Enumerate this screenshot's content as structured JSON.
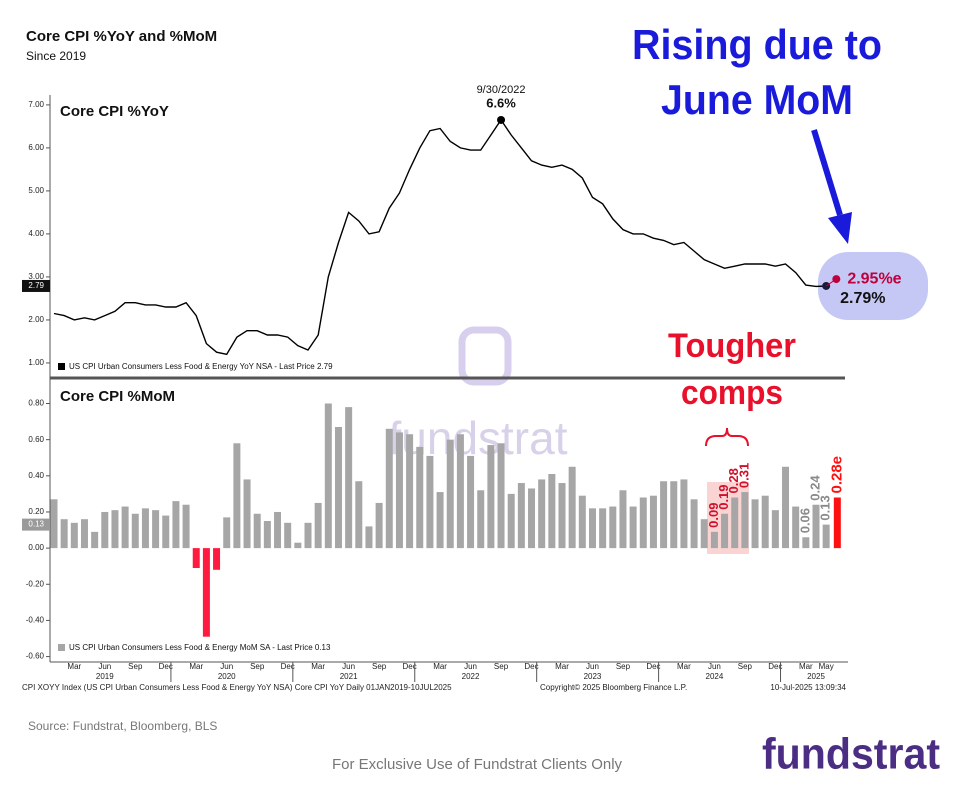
{
  "header": {
    "title": "Core CPI %YoY and %MoM",
    "subtitle": "Since 2019"
  },
  "callout": {
    "lines": [
      "Rising due to",
      "June MoM"
    ]
  },
  "watermark": "fundstrat",
  "chart_data": [
    {
      "type": "line",
      "title": "Core CPI %YoY",
      "color": "#000000",
      "legend": "US CPI Urban Consumers Less Food & Energy YoY NSA - Last Price 2.79",
      "values": [
        2.15,
        2.1,
        2.0,
        2.05,
        2.0,
        2.1,
        2.2,
        2.4,
        2.4,
        2.35,
        2.35,
        2.3,
        2.3,
        2.4,
        2.1,
        1.45,
        1.25,
        1.2,
        1.6,
        1.75,
        1.75,
        1.65,
        1.65,
        1.6,
        1.4,
        1.3,
        1.65,
        3.0,
        3.8,
        4.5,
        4.3,
        4.0,
        4.05,
        4.6,
        4.95,
        5.5,
        6.0,
        6.4,
        6.45,
        6.15,
        6.0,
        5.95,
        5.95,
        6.3,
        6.65,
        6.3,
        6.0,
        5.7,
        5.6,
        5.55,
        5.6,
        5.5,
        5.3,
        4.85,
        4.7,
        4.35,
        4.1,
        4.0,
        4.0,
        3.9,
        3.85,
        3.75,
        3.8,
        3.6,
        3.4,
        3.3,
        3.2,
        3.25,
        3.3,
        3.3,
        3.3,
        3.25,
        3.3,
        3.1,
        2.81,
        2.78,
        2.79,
        null
      ],
      "ylim": [
        0.65,
        7.23
      ],
      "yticks": [
        {
          "value": 1,
          "label": "1.00"
        },
        {
          "value": 2,
          "label": "2.00"
        },
        {
          "value": 3,
          "label": "3.00"
        },
        {
          "value": 4,
          "label": "4.00"
        },
        {
          "value": 5,
          "label": "5.00"
        },
        {
          "value": 6,
          "label": "6.00"
        },
        {
          "value": 7,
          "label": "7.00"
        }
      ],
      "last_price": {
        "value": 2.79,
        "label": "2.79"
      },
      "peak": {
        "date": "9/30/2022",
        "label": "6.6%"
      },
      "last_label": "2.79%",
      "estimate": {
        "value": 2.95,
        "label": "2.95%e",
        "color": "#c0003c"
      }
    },
    {
      "type": "bar",
      "title": "Core CPI %MoM",
      "color": "#a6a6a6",
      "negative_color": "#ff1a40",
      "legend": "US CPI Urban Consumers Less Food & Energy MoM SA - Last Price 0.13",
      "categories": [
        null,
        null,
        "Mar",
        null,
        null,
        "Jun",
        null,
        null,
        "Sep",
        null,
        null,
        "Dec",
        null,
        null,
        "Mar",
        null,
        null,
        "Jun",
        null,
        null,
        "Sep",
        null,
        null,
        "Dec",
        null,
        null,
        "Mar",
        null,
        null,
        "Jun",
        null,
        null,
        "Sep",
        null,
        null,
        "Dec",
        null,
        null,
        "Mar",
        null,
        null,
        "Jun",
        null,
        null,
        "Sep",
        null,
        null,
        "Dec",
        null,
        null,
        "Mar",
        null,
        null,
        "Jun",
        null,
        null,
        "Sep",
        null,
        null,
        "Dec",
        null,
        null,
        "Mar",
        null,
        null,
        "Jun",
        null,
        null,
        "Sep",
        null,
        null,
        "Dec",
        null,
        null,
        "Mar",
        null,
        "May",
        null
      ],
      "years": [
        null,
        null,
        null,
        null,
        null,
        "2019",
        null,
        null,
        null,
        null,
        null,
        null,
        null,
        null,
        null,
        null,
        null,
        "2020",
        null,
        null,
        null,
        null,
        null,
        null,
        null,
        null,
        null,
        null,
        null,
        "2021",
        null,
        null,
        null,
        null,
        null,
        null,
        null,
        null,
        null,
        null,
        null,
        "2022",
        null,
        null,
        null,
        null,
        null,
        null,
        null,
        null,
        null,
        null,
        null,
        "2023",
        null,
        null,
        null,
        null,
        null,
        null,
        null,
        null,
        null,
        null,
        null,
        "2024",
        null,
        null,
        null,
        null,
        null,
        null,
        null,
        null,
        null,
        "2025",
        null,
        null
      ],
      "values": [
        0.27,
        0.16,
        0.14,
        0.16,
        0.09,
        0.2,
        0.21,
        0.23,
        0.19,
        0.22,
        0.21,
        0.18,
        0.26,
        0.24,
        -0.11,
        -0.49,
        -0.12,
        0.17,
        0.58,
        0.38,
        0.19,
        0.15,
        0.2,
        0.14,
        0.03,
        0.14,
        0.25,
        0.8,
        0.67,
        0.78,
        0.37,
        0.12,
        0.25,
        0.66,
        0.64,
        0.63,
        0.56,
        0.51,
        0.31,
        0.6,
        0.63,
        0.51,
        0.32,
        0.57,
        0.58,
        0.3,
        0.36,
        0.33,
        0.38,
        0.41,
        0.36,
        0.45,
        0.29,
        0.22,
        0.22,
        0.23,
        0.32,
        0.23,
        0.28,
        0.29,
        0.37,
        0.37,
        0.38,
        0.27,
        0.16,
        0.09,
        0.19,
        0.28,
        0.31,
        0.27,
        0.29,
        0.21,
        0.45,
        0.23,
        0.06,
        0.24,
        0.13,
        null
      ],
      "value_labels": [
        null,
        null,
        null,
        null,
        null,
        null,
        null,
        null,
        null,
        null,
        null,
        null,
        null,
        null,
        null,
        null,
        null,
        null,
        null,
        null,
        null,
        null,
        null,
        null,
        null,
        null,
        null,
        null,
        null,
        null,
        null,
        null,
        null,
        null,
        null,
        null,
        null,
        null,
        null,
        null,
        null,
        null,
        null,
        null,
        null,
        null,
        null,
        null,
        null,
        null,
        null,
        null,
        null,
        null,
        null,
        null,
        null,
        null,
        null,
        null,
        null,
        null,
        null,
        null,
        null,
        "0.09",
        "0.19",
        "0.28",
        "0.31",
        null,
        null,
        null,
        null,
        null,
        "0.06",
        "0.24",
        "0.13",
        null
      ],
      "value_label_colors": [
        null,
        null,
        null,
        null,
        null,
        null,
        null,
        null,
        null,
        null,
        null,
        null,
        null,
        null,
        null,
        null,
        null,
        null,
        null,
        null,
        null,
        null,
        null,
        null,
        null,
        null,
        null,
        null,
        null,
        null,
        null,
        null,
        null,
        null,
        null,
        null,
        null,
        null,
        null,
        null,
        null,
        null,
        null,
        null,
        null,
        null,
        null,
        null,
        null,
        null,
        null,
        null,
        null,
        null,
        null,
        null,
        null,
        null,
        null,
        null,
        null,
        null,
        null,
        null,
        null,
        "#d0102a",
        "#d0102a",
        "#d0102a",
        "#d0102a",
        null,
        null,
        null,
        null,
        null,
        "#8a8a8a",
        "#8a8a8a",
        "#8a8a8a",
        null
      ],
      "ylim": [
        -0.63,
        0.93
      ],
      "yticks": [
        {
          "value": 0.8,
          "label": "0.80"
        },
        {
          "value": 0.6,
          "label": "0.60"
        },
        {
          "value": 0.4,
          "label": "0.40"
        },
        {
          "value": 0.2,
          "label": "0.20"
        },
        {
          "value": 0,
          "label": "0.00"
        },
        {
          "value": -0.2,
          "label": "-0.20"
        },
        {
          "value": -0.4,
          "label": "-0.40"
        },
        {
          "value": -0.6,
          "label": "-0.60"
        }
      ],
      "last_price": {
        "value": 0.13,
        "label": "0.13"
      },
      "estimate": {
        "value": 0.28,
        "label": "0.28e",
        "color": "#ff1010"
      },
      "annotation": {
        "lines": [
          "Tougher",
          "comps"
        ]
      }
    }
  ],
  "bloomberg_footer": {
    "left": "CPI XOYY Index (US CPI Urban Consumers Less Food & Energy YoY NSA) Core CPI YoY  Daily 01JAN2019-10JUL2025",
    "center": "Copyright© 2025 Bloomberg Finance L.P.",
    "right": "10-Jul-2025 13:09:34"
  },
  "source": "Source: Fundstrat, Bloomberg, BLS",
  "disclaimer": "For Exclusive Use of Fundstrat Clients Only",
  "logo": "fundstrat"
}
